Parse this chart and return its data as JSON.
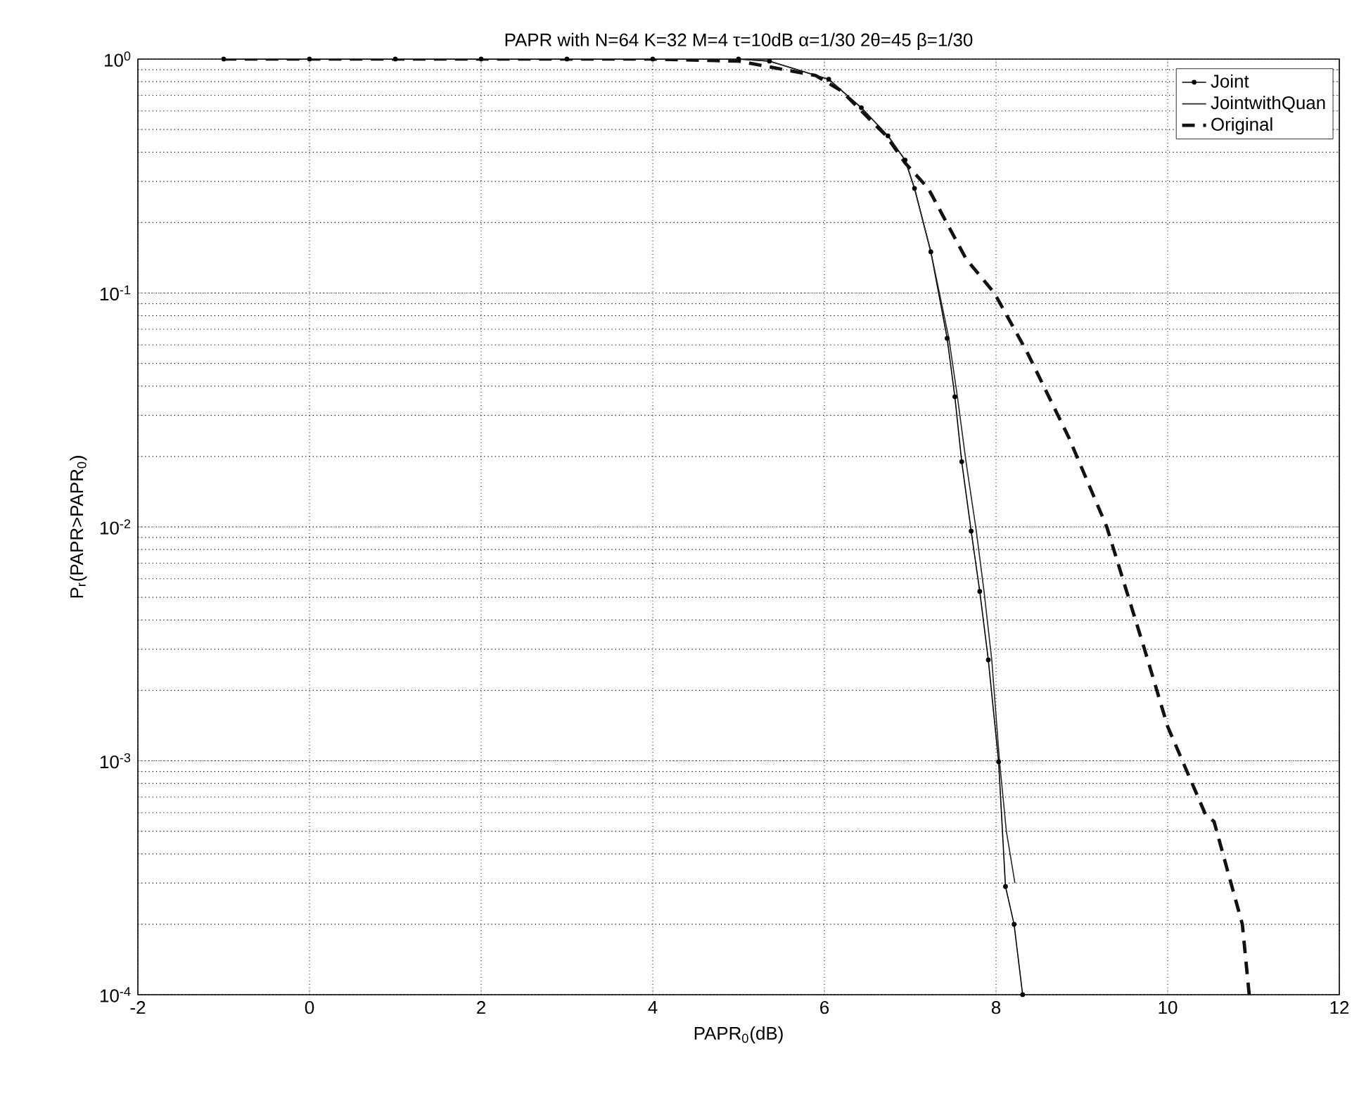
{
  "chart_data": {
    "type": "line",
    "title": "PAPR with N=64 K=32 M=4 τ=10dB α=1/30 2θ=45 β=1/30",
    "xlabel": "PAPR$_{0}$(dB)",
    "ylabel": "P$_{r}$(PAPR>PAPR$_{0}$)",
    "log": "y",
    "grid": true,
    "legend": "top right",
    "xlim": [
      -2,
      12
    ],
    "ylim": [
      0.0001,
      1
    ],
    "xticks": [
      -2,
      0,
      2,
      4,
      6,
      8,
      10,
      12
    ],
    "yticks": [
      {
        "value": 0.0001,
        "label": "10$^{-4}$"
      },
      {
        "value": 0.001,
        "label": "10$^{-3}$"
      },
      {
        "value": 0.01,
        "label": "10$^{-2}$"
      },
      {
        "value": 0.1,
        "label": "10$^{-1}$"
      },
      {
        "value": 1,
        "label": "10$^{0}$"
      }
    ],
    "series": [
      {
        "name": "Joint",
        "color": "#000000",
        "marker": "circle",
        "line_style": "solid",
        "x": [
          -1,
          0,
          1,
          2,
          3,
          4,
          5,
          5.36,
          6.05,
          6.43,
          6.74,
          6.94,
          7.05,
          7.24,
          7.43,
          7.52,
          7.6,
          7.71,
          7.81,
          7.91,
          8.03,
          8.11,
          8.21,
          8.31
        ],
        "values": [
          1,
          1,
          1,
          1,
          1,
          1,
          1,
          0.98,
          0.82,
          0.62,
          0.47,
          0.37,
          0.28,
          0.15,
          0.064,
          0.036,
          0.019,
          0.0096,
          0.0053,
          0.0027,
          0.00099,
          0.00029,
          0.0002,
          0.0001
        ]
      },
      {
        "name": "JointwithQuan",
        "color": "#262626",
        "marker": "none",
        "line_style": "solid",
        "x": [
          -1,
          0,
          1,
          2,
          3,
          4,
          5,
          5.36,
          6.05,
          6.43,
          6.74,
          6.94,
          7.05,
          7.24,
          7.45,
          7.55,
          7.65,
          7.77,
          7.86,
          7.95,
          8.04,
          8.12,
          8.22
        ],
        "values": [
          1,
          1,
          1,
          1,
          1,
          1,
          1,
          0.98,
          0.82,
          0.62,
          0.47,
          0.37,
          0.28,
          0.15,
          0.064,
          0.036,
          0.019,
          0.0096,
          0.0053,
          0.0027,
          0.001,
          0.0005,
          0.0003
        ]
      },
      {
        "name": "Original",
        "color": "#121212",
        "marker": "none",
        "line_style": "dashed",
        "x": [
          -1,
          0,
          1,
          2,
          3,
          4,
          5,
          5.9,
          6.2,
          6.72,
          6.94,
          7.21,
          7.65,
          7.98,
          8.36,
          8.85,
          9.29,
          9.73,
          10.0,
          10.44,
          10.54,
          10.87,
          10.95
        ],
        "values": [
          1,
          1,
          1,
          1,
          1,
          1,
          0.98,
          0.85,
          0.73,
          0.47,
          0.36,
          0.28,
          0.14,
          0.1,
          0.056,
          0.024,
          0.01,
          0.003,
          0.0014,
          0.00059,
          0.00055,
          0.0002,
          0.0001
        ]
      }
    ]
  }
}
